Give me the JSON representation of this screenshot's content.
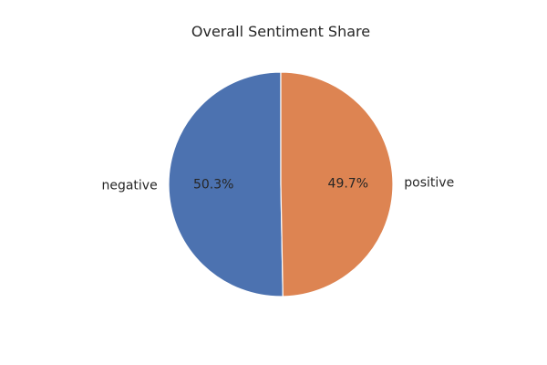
{
  "chart_data": {
    "type": "pie",
    "title": "Overall Sentiment Share",
    "slices": [
      {
        "label": "negative",
        "value": 50.3,
        "pct_label": "50.3%",
        "color": "#4c72b0"
      },
      {
        "label": "positive",
        "value": 49.7,
        "pct_label": "49.7%",
        "color": "#dd8452"
      }
    ],
    "start_angle": 90,
    "direction": "counterclockwise"
  }
}
